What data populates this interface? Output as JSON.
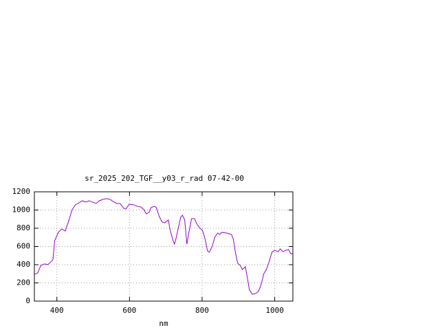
{
  "chart_data": {
    "type": "line",
    "title": "sr_2025_202_TGF__y03_r_rad 07-42-00",
    "x_label": "nm",
    "xlim": [
      338,
      1050
    ],
    "ylim": [
      0,
      1200
    ],
    "xticks": [
      400,
      600,
      800,
      1000
    ],
    "yticks": [
      0,
      200,
      400,
      600,
      800,
      1000,
      1200
    ],
    "grid": true,
    "x": [
      338,
      347,
      356,
      366,
      375,
      381,
      389,
      394,
      404,
      413,
      423,
      432,
      442,
      451,
      461,
      470,
      479,
      489,
      498,
      508,
      517,
      527,
      536,
      546,
      555,
      565,
      574,
      584,
      590,
      599,
      612,
      621,
      631,
      640,
      646,
      654,
      659,
      669,
      674,
      682,
      690,
      697,
      707,
      712,
      720,
      724,
      729,
      735,
      741,
      746,
      752,
      758,
      763,
      771,
      779,
      786,
      792,
      801,
      807,
      815,
      820,
      828,
      835,
      843,
      849,
      854,
      868,
      881,
      886,
      892,
      898,
      905,
      911,
      919,
      924,
      930,
      938,
      947,
      955,
      962,
      970,
      977,
      985,
      992,
      1000,
      1009,
      1015,
      1023,
      1030,
      1038,
      1044,
      1049
    ],
    "series": [
      {
        "name": "sr_2025_202_TGF__y03_r_rad",
        "color": "#9400d3",
        "values": [
          294,
          309,
          392,
          408,
          400,
          423,
          453,
          664,
          755,
          792,
          770,
          875,
          1004,
          1057,
          1079,
          1102,
          1087,
          1102,
          1087,
          1072,
          1102,
          1117,
          1125,
          1117,
          1094,
          1072,
          1072,
          1019,
          1011,
          1064,
          1057,
          1042,
          1034,
          1004,
          958,
          974,
          1026,
          1042,
          1026,
          928,
          868,
          860,
          891,
          777,
          664,
          626,
          702,
          815,
          921,
          943,
          891,
          626,
          740,
          906,
          906,
          845,
          808,
          777,
          702,
          551,
          536,
          604,
          702,
          747,
          732,
          755,
          747,
          732,
          679,
          528,
          415,
          392,
          347,
          377,
          272,
          128,
          75,
          83,
          106,
          174,
          302,
          347,
          438,
          536,
          558,
          543,
          574,
          543,
          558,
          566,
          521,
          521
        ]
      }
    ]
  }
}
